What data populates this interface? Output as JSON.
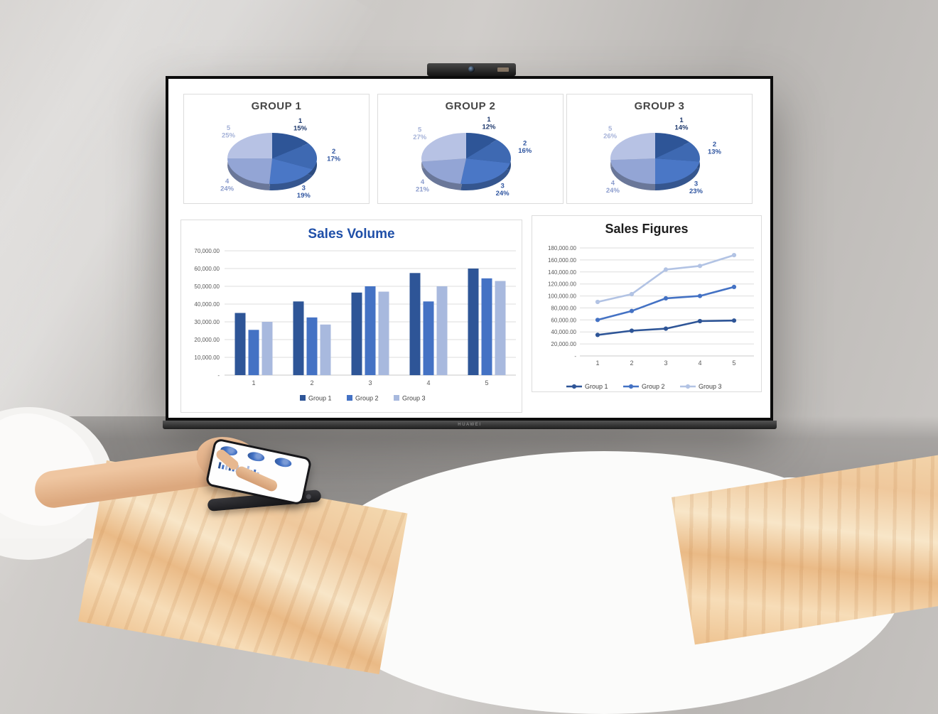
{
  "scene": {
    "tv": {
      "brand": "HUAWEI"
    },
    "colors": {
      "pie_slices": [
        "#2e5597",
        "#3e69b2",
        "#4a77c6",
        "#93a5d5",
        "#b7c2e4"
      ],
      "pie_labels": [
        "#1f3a6e",
        "#2f55a0",
        "#2f55a0",
        "#8b9ccd",
        "#a5b2d8"
      ],
      "bar_series": [
        "#2e5597",
        "#4472c4",
        "#a8b9de"
      ],
      "line_series": [
        "#2e5597",
        "#4472c4",
        "#b2c3e4"
      ],
      "grid": "#dedede",
      "baseline": "#c8c8c8",
      "axis_text": "#595959",
      "legend_text": "#3f3f3f",
      "panel_border": "#dcdcdc",
      "title_blue": "#1f4fa8",
      "title_dark": "#1d1d1d",
      "group_title": "#454545"
    }
  },
  "chart_data": [
    {
      "type": "pie",
      "title": "GROUP 1",
      "labels": [
        "1",
        "2",
        "3",
        "4",
        "5"
      ],
      "values": [
        15,
        17,
        19,
        24,
        25
      ],
      "unit": "%",
      "label_position": "outside",
      "legend": "none",
      "style": "3d"
    },
    {
      "type": "pie",
      "title": "GROUP 2",
      "labels": [
        "1",
        "2",
        "3",
        "4",
        "5"
      ],
      "values": [
        12,
        16,
        24,
        21,
        27
      ],
      "unit": "%",
      "label_position": "outside",
      "legend": "none",
      "style": "3d"
    },
    {
      "type": "pie",
      "title": "GROUP 3",
      "labels": [
        "1",
        "2",
        "3",
        "4",
        "5"
      ],
      "values": [
        14,
        13,
        23,
        24,
        26
      ],
      "unit": "%",
      "label_position": "outside",
      "legend": "none",
      "style": "3d"
    },
    {
      "type": "bar",
      "title": "Sales Volume",
      "categories": [
        "1",
        "2",
        "3",
        "4",
        "5"
      ],
      "series": [
        {
          "name": "Group 1",
          "values": [
            35000,
            41500,
            46500,
            57500,
            60000
          ]
        },
        {
          "name": "Group 2",
          "values": [
            25500,
            32500,
            50000,
            41500,
            54500
          ]
        },
        {
          "name": "Group 3",
          "values": [
            30000,
            28500,
            47000,
            50000,
            53000
          ]
        }
      ],
      "ylim": [
        0,
        70000
      ],
      "ytick_labels": [
        "70,000.00",
        "60,000.00",
        "50,000.00",
        "40,000.00",
        "30,000.00",
        "20,000.00",
        "10,000.00",
        "-"
      ],
      "grid": true,
      "legend_position": "bottom"
    },
    {
      "type": "line",
      "title": "Sales Figures",
      "x": [
        "1",
        "2",
        "3",
        "4",
        "5"
      ],
      "series": [
        {
          "name": "Group 1",
          "values": [
            35000,
            42000,
            45500,
            58000,
            59000
          ]
        },
        {
          "name": "Group 2",
          "values": [
            60000,
            75000,
            96000,
            100000,
            115000
          ]
        },
        {
          "name": "Group 3",
          "values": [
            90000,
            103000,
            144000,
            150000,
            168000
          ]
        }
      ],
      "ylim": [
        0,
        180000
      ],
      "ytick_labels": [
        "180,000.00",
        "160,000.00",
        "140,000.00",
        "120,000.00",
        "100,000.00",
        "80,000.00",
        "60,000.00",
        "40,000.00",
        "20,000.00",
        "-"
      ],
      "grid": true,
      "markers": true,
      "legend_position": "bottom"
    }
  ]
}
